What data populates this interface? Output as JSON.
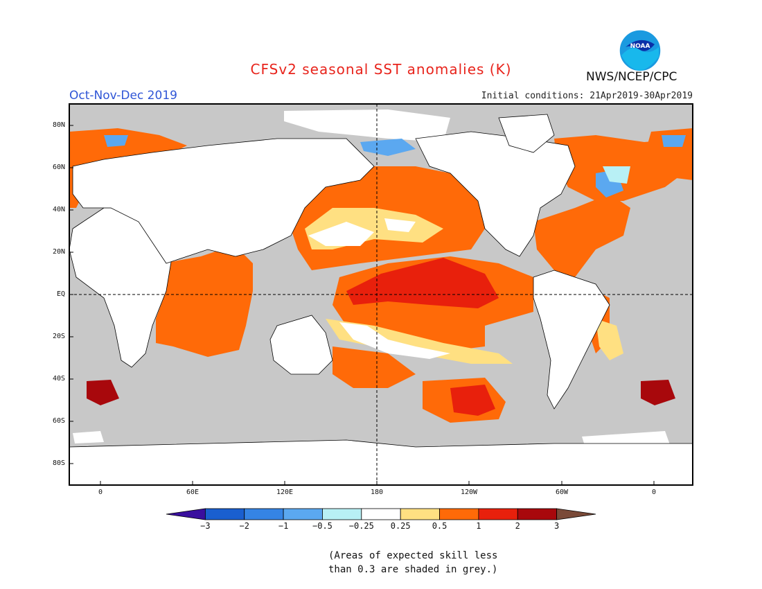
{
  "title": "CFSv2 seasonal SST anomalies (K)",
  "season": "Oct-Nov-Dec 2019",
  "initial_conditions": "Initial conditions: 21Apr2019-30Apr2019",
  "agency": "NWS/NCEP/CPC",
  "logo_text": "NOAA",
  "note_line1": "(Areas of expected skill less",
  "note_line2": "than 0.3 are shaded in grey.)",
  "lat_labels": [
    "80N",
    "60N",
    "40N",
    "20N",
    "EQ",
    "20S",
    "40S",
    "60S",
    "80S"
  ],
  "lon_labels": [
    "0",
    "60E",
    "120E",
    "180",
    "120W",
    "60W",
    "0"
  ],
  "colorbar": {
    "labels": [
      "−3",
      "−2",
      "−1",
      "−0.5",
      "−0.25",
      "0.25",
      "0.5",
      "1",
      "2",
      "3"
    ],
    "colors": [
      "#3a0f9e",
      "#1a5fcf",
      "#3584e4",
      "#5ba8f0",
      "#b8f0f5",
      "#ffffff",
      "#ffe082",
      "#ff6a08",
      "#e8200c",
      "#a8080c",
      "#7a4a38"
    ]
  },
  "colors": {
    "land": "#ffffff",
    "ocean_grey": "#c8c8c8",
    "warm_1": "#ff6a08",
    "warm_2": "#e8200c",
    "warm_3": "#a8080c",
    "warm_light": "#ffe082",
    "cool_light": "#b8f0f5",
    "cool_mid": "#5ba8f0",
    "cool_dark": "#3584e4"
  }
}
